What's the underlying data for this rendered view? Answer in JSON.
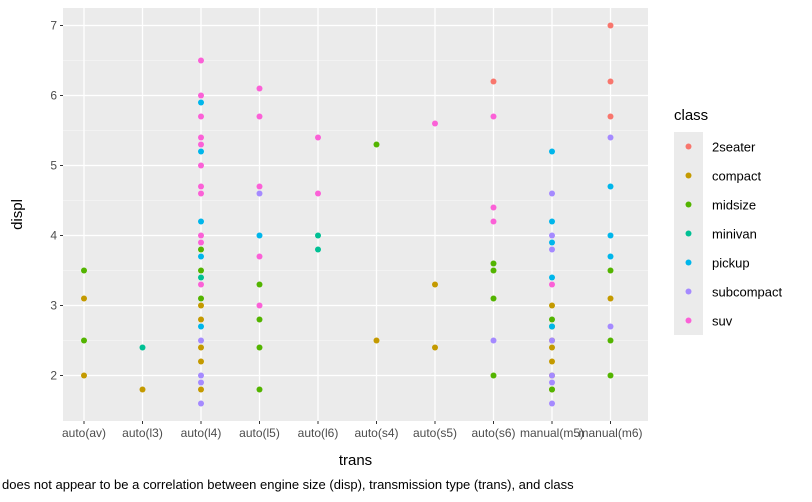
{
  "chart_data": {
    "type": "scatter",
    "xlabel": "trans",
    "ylabel": "displ",
    "categories": [
      "auto(av)",
      "auto(l3)",
      "auto(l4)",
      "auto(l5)",
      "auto(l6)",
      "auto(s4)",
      "auto(s5)",
      "auto(s6)",
      "manual(m5)",
      "manual(m6)"
    ],
    "yticks": [
      2,
      3,
      4,
      5,
      6,
      7
    ],
    "ylim": [
      1.35,
      7.25
    ],
    "grid": true,
    "legend": {
      "title": "class",
      "position": "right",
      "entries": [
        "2seater",
        "compact",
        "midsize",
        "minivan",
        "pickup",
        "subcompact",
        "suv"
      ]
    },
    "colors": {
      "2seater": "#F8766D",
      "compact": "#C49A00",
      "midsize": "#53B400",
      "minivan": "#00C094",
      "pickup": "#00B6EB",
      "subcompact": "#A58AFF",
      "suv": "#FB61D7"
    },
    "caption": "does not appear to be a correlation between engine size (disp), transmission type (trans), and class",
    "series": [
      {
        "name": "2seater",
        "points": [
          [
            "auto(s6)",
            6.2
          ],
          [
            "manual(m6)",
            7.0
          ],
          [
            "manual(m6)",
            6.2
          ],
          [
            "manual(m6)",
            5.7
          ]
        ]
      },
      {
        "name": "compact",
        "points": [
          [
            "auto(av)",
            3.1
          ],
          [
            "auto(av)",
            2.0
          ],
          [
            "auto(l3)",
            1.8
          ],
          [
            "auto(l4)",
            3.0
          ],
          [
            "auto(l4)",
            2.8
          ],
          [
            "auto(l4)",
            2.4
          ],
          [
            "auto(l4)",
            2.2
          ],
          [
            "auto(l4)",
            1.8
          ],
          [
            "auto(s4)",
            2.5
          ],
          [
            "auto(s5)",
            3.3
          ],
          [
            "auto(s5)",
            2.4
          ],
          [
            "manual(m5)",
            3.0
          ],
          [
            "manual(m5)",
            2.5
          ],
          [
            "manual(m5)",
            2.4
          ],
          [
            "manual(m5)",
            2.2
          ],
          [
            "manual(m5)",
            2.0
          ],
          [
            "manual(m5)",
            1.8
          ],
          [
            "manual(m6)",
            3.1
          ]
        ]
      },
      {
        "name": "midsize",
        "points": [
          [
            "auto(av)",
            3.5
          ],
          [
            "auto(av)",
            2.5
          ],
          [
            "auto(l4)",
            3.8
          ],
          [
            "auto(l4)",
            3.5
          ],
          [
            "auto(l4)",
            3.1
          ],
          [
            "auto(l5)",
            3.3
          ],
          [
            "auto(l5)",
            2.8
          ],
          [
            "auto(l5)",
            2.4
          ],
          [
            "auto(l5)",
            1.8
          ],
          [
            "auto(s4)",
            5.3
          ],
          [
            "auto(s6)",
            3.6
          ],
          [
            "auto(s6)",
            3.5
          ],
          [
            "auto(s6)",
            3.1
          ],
          [
            "auto(s6)",
            2.0
          ],
          [
            "manual(m5)",
            2.8
          ],
          [
            "manual(m5)",
            2.7
          ],
          [
            "manual(m5)",
            1.8
          ],
          [
            "manual(m6)",
            3.5
          ],
          [
            "manual(m6)",
            2.5
          ],
          [
            "manual(m6)",
            2.0
          ]
        ]
      },
      {
        "name": "minivan",
        "points": [
          [
            "auto(l3)",
            2.4
          ],
          [
            "auto(l4)",
            3.4
          ],
          [
            "auto(l6)",
            4.0
          ],
          [
            "auto(l6)",
            3.8
          ]
        ]
      },
      {
        "name": "pickup",
        "points": [
          [
            "auto(l4)",
            5.9
          ],
          [
            "auto(l4)",
            5.2
          ],
          [
            "auto(l4)",
            4.2
          ],
          [
            "auto(l4)",
            3.7
          ],
          [
            "auto(l4)",
            2.7
          ],
          [
            "auto(l5)",
            4.0
          ],
          [
            "manual(m5)",
            5.2
          ],
          [
            "manual(m5)",
            4.2
          ],
          [
            "manual(m5)",
            3.9
          ],
          [
            "manual(m5)",
            3.4
          ],
          [
            "manual(m5)",
            2.7
          ],
          [
            "manual(m6)",
            4.7
          ],
          [
            "manual(m6)",
            4.0
          ],
          [
            "manual(m6)",
            3.7
          ]
        ]
      },
      {
        "name": "subcompact",
        "points": [
          [
            "auto(l4)",
            2.5
          ],
          [
            "auto(l4)",
            2.0
          ],
          [
            "auto(l4)",
            1.9
          ],
          [
            "auto(l4)",
            1.6
          ],
          [
            "auto(l5)",
            4.6
          ],
          [
            "auto(s6)",
            2.5
          ],
          [
            "manual(m5)",
            4.6
          ],
          [
            "manual(m5)",
            4.0
          ],
          [
            "manual(m5)",
            3.8
          ],
          [
            "manual(m5)",
            2.5
          ],
          [
            "manual(m5)",
            2.0
          ],
          [
            "manual(m5)",
            1.9
          ],
          [
            "manual(m5)",
            1.6
          ],
          [
            "manual(m6)",
            5.4
          ],
          [
            "manual(m6)",
            2.7
          ]
        ]
      },
      {
        "name": "suv",
        "points": [
          [
            "auto(l4)",
            6.5
          ],
          [
            "auto(l4)",
            6.0
          ],
          [
            "auto(l4)",
            5.7
          ],
          [
            "auto(l4)",
            5.4
          ],
          [
            "auto(l4)",
            5.3
          ],
          [
            "auto(l4)",
            5.0
          ],
          [
            "auto(l4)",
            4.7
          ],
          [
            "auto(l4)",
            4.6
          ],
          [
            "auto(l4)",
            4.0
          ],
          [
            "auto(l4)",
            3.9
          ],
          [
            "auto(l4)",
            3.3
          ],
          [
            "auto(l5)",
            6.1
          ],
          [
            "auto(l5)",
            5.7
          ],
          [
            "auto(l5)",
            4.7
          ],
          [
            "auto(l5)",
            3.7
          ],
          [
            "auto(l5)",
            3.0
          ],
          [
            "auto(l6)",
            5.4
          ],
          [
            "auto(l6)",
            4.6
          ],
          [
            "auto(s5)",
            5.6
          ],
          [
            "auto(s6)",
            5.7
          ],
          [
            "auto(s6)",
            4.4
          ],
          [
            "auto(s6)",
            4.2
          ],
          [
            "manual(m5)",
            3.3
          ]
        ]
      }
    ]
  }
}
